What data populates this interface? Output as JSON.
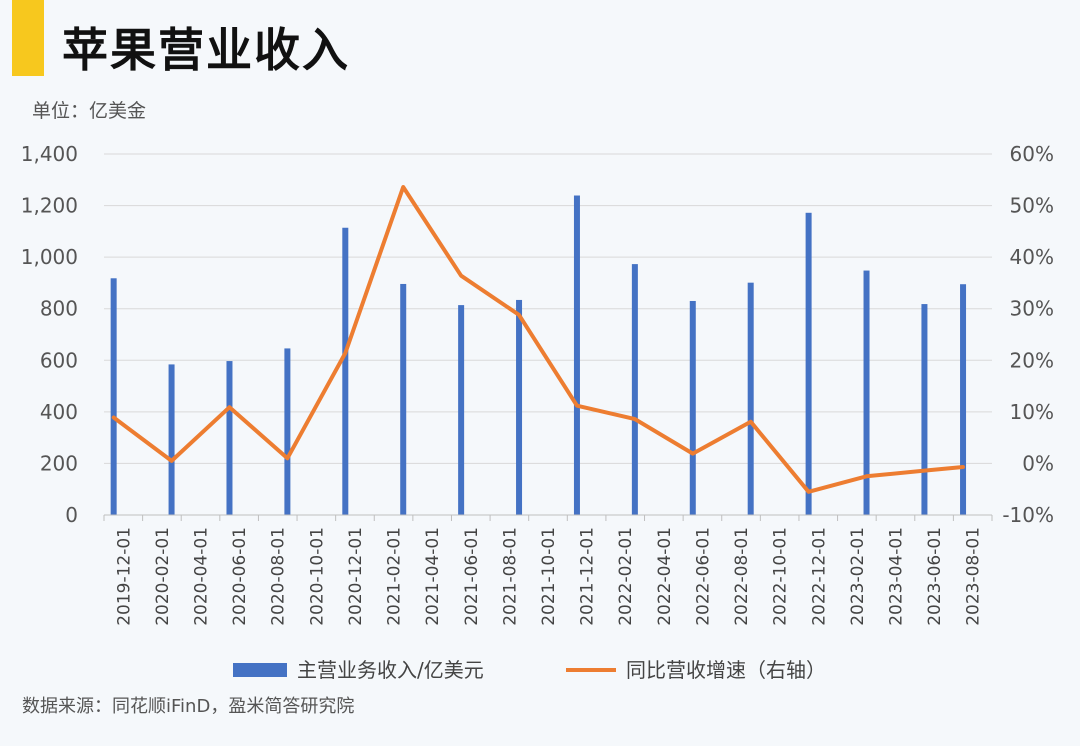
{
  "header": {
    "title": "苹果营业收入",
    "unit": "单位：亿美金"
  },
  "footer": {
    "source": "数据来源：同花顺iFinD，盈米简答研究院"
  },
  "colors": {
    "accent": "#f7c81e",
    "bar": "#4472c4",
    "line": "#ed7d31"
  },
  "chart_data": {
    "type": "bar+line",
    "categories": [
      "2019-12-01",
      "2020-02-01",
      "2020-04-01",
      "2020-06-01",
      "2020-08-01",
      "2020-10-01",
      "2020-12-01",
      "2021-02-01",
      "2021-04-01",
      "2021-06-01",
      "2021-08-01",
      "2021-10-01",
      "2021-12-01",
      "2022-02-01",
      "2022-04-01",
      "2022-06-01",
      "2022-08-01",
      "2022-10-01",
      "2022-12-01",
      "2023-02-01",
      "2023-04-01",
      "2023-06-01",
      "2023-08-01"
    ],
    "series": [
      {
        "name": "主营业务收入/亿美元",
        "type": "bar",
        "axis": "left",
        "points": [
          [
            "2019-12-01",
            918
          ],
          [
            "2020-03-01",
            584
          ],
          [
            "2020-06-01",
            597
          ],
          [
            "2020-09-01",
            646
          ],
          [
            "2020-12-01",
            1114
          ],
          [
            "2021-03-01",
            896
          ],
          [
            "2021-06-01",
            814
          ],
          [
            "2021-09-01",
            834
          ],
          [
            "2021-12-01",
            1239
          ],
          [
            "2022-03-01",
            973
          ],
          [
            "2022-06-01",
            830
          ],
          [
            "2022-09-01",
            901
          ],
          [
            "2022-12-01",
            1172
          ],
          [
            "2023-03-01",
            948
          ],
          [
            "2023-06-01",
            818
          ],
          [
            "2023-08-01",
            895
          ]
        ]
      },
      {
        "name": "同比营收增速（右轴）",
        "type": "line",
        "axis": "right",
        "points": [
          [
            "2019-12-01",
            8.9
          ],
          [
            "2020-03-01",
            0.5
          ],
          [
            "2020-06-01",
            10.9
          ],
          [
            "2020-09-01",
            1.0
          ],
          [
            "2020-12-01",
            21.4
          ],
          [
            "2021-03-01",
            53.6
          ],
          [
            "2021-06-01",
            36.4
          ],
          [
            "2021-09-01",
            28.8
          ],
          [
            "2021-12-01",
            11.2
          ],
          [
            "2022-03-01",
            8.6
          ],
          [
            "2022-06-01",
            1.9
          ],
          [
            "2022-09-01",
            8.1
          ],
          [
            "2022-12-01",
            -5.5
          ],
          [
            "2023-03-01",
            -2.5
          ],
          [
            "2023-06-01",
            -1.4
          ],
          [
            "2023-08-01",
            -0.7
          ]
        ]
      }
    ],
    "y_left": {
      "min": 0,
      "max": 1400,
      "step": 200
    },
    "y_right": {
      "min": -10,
      "max": 60,
      "step": 10,
      "suffix": "%"
    },
    "gridlines": true,
    "legend_position": "bottom"
  }
}
